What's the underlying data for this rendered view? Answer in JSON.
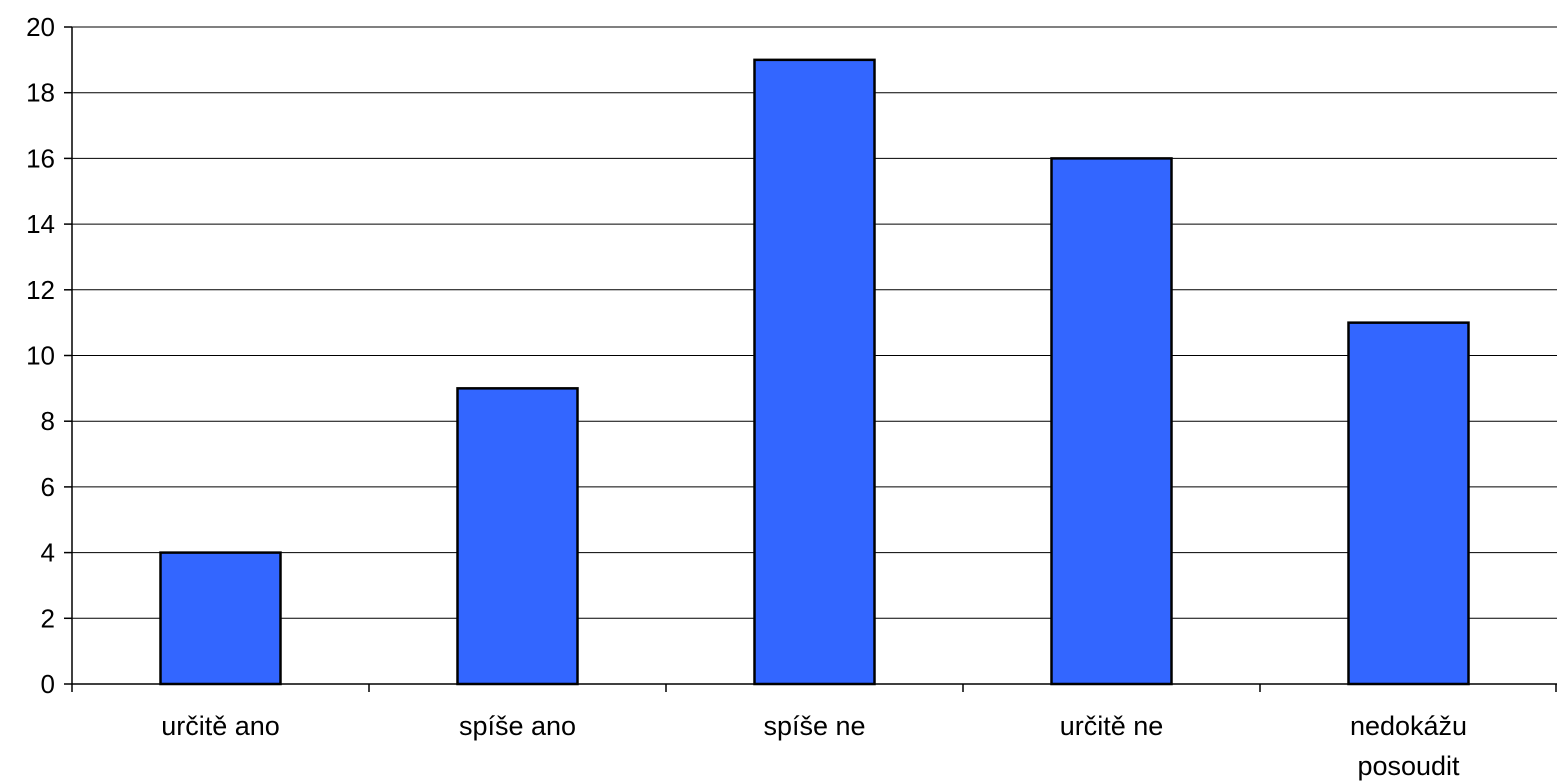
{
  "chart_data": {
    "type": "bar",
    "categories": [
      [
        "určitě ano"
      ],
      [
        "spíše ano"
      ],
      [
        "spíše ne"
      ],
      [
        "určitě ne"
      ],
      [
        "nedokážu",
        "posoudit"
      ]
    ],
    "values": [
      4,
      9,
      19,
      16,
      11
    ],
    "ylim": [
      0,
      20
    ],
    "yticks": [
      0,
      2,
      4,
      6,
      8,
      10,
      12,
      14,
      16,
      18,
      20
    ],
    "grid": true,
    "legend": "none",
    "colors": {
      "bar": "#3366FF",
      "bar_outline": "#000000"
    }
  }
}
